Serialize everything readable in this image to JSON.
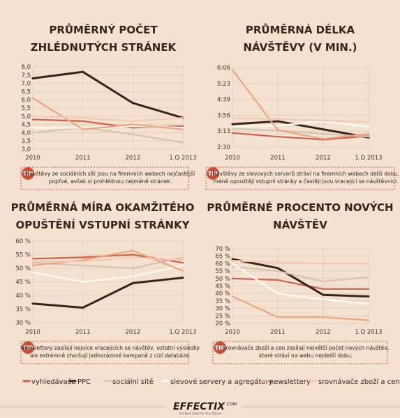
{
  "colors": {
    "background": "#f3e2cf",
    "tip_badge": "#c8503a",
    "tip_border": "#c8503a",
    "grid": "#d9c3ad"
  },
  "series_styles": [
    {
      "key": "vyhledavace",
      "color": "#c96450",
      "width": 2.2
    },
    {
      "key": "ppc",
      "color": "#3a2418",
      "width": 3
    },
    {
      "key": "socialni_site",
      "color": "#d5c4b0",
      "width": 2.2
    },
    {
      "key": "slevove_servery",
      "color": "#fdf8ef",
      "width": 2.5
    },
    {
      "key": "newslettery",
      "color": "#eba57f",
      "width": 2.2
    },
    {
      "key": "srovnavace",
      "color": "#f3c9b5",
      "width": 2.2
    }
  ],
  "legend": [
    {
      "label": "vyhledávače",
      "color": "#c96450"
    },
    {
      "label": "PPC",
      "color": "#3a2418"
    },
    {
      "label": "sociální sítě",
      "color": "#d5c4b0"
    },
    {
      "label": "slevové servery a agregátory",
      "color": "#fdf8ef"
    },
    {
      "label": "newslettery",
      "color": "#eba57f"
    },
    {
      "label": "srovnávače zboží a cen",
      "color": "#f3c9b5"
    }
  ],
  "brand": {
    "name": "EFFECTIX",
    "tld": ".COM",
    "tagline": "The Best Value for Your Dollars"
  },
  "chart_data": [
    {
      "type": "line",
      "title": [
        "PRŮMĚRNÝ POČET",
        "ZHLÉDNUTÝCH STRÁNEK"
      ],
      "categories": [
        "2010",
        "2011",
        "2012",
        "1.Q 2013"
      ],
      "y_ticks": [
        "8,0",
        "7,5",
        "7,0",
        "6,5",
        "6,0",
        "5,5",
        "5,0",
        "4,5",
        "4,0",
        "3,5",
        "3,0"
      ],
      "ylim": [
        3.0,
        8.0
      ],
      "series": [
        {
          "values": [
            4.8,
            4.7,
            4.3,
            4.4
          ]
        },
        {
          "values": [
            7.3,
            7.7,
            5.8,
            4.9
          ]
        },
        {
          "values": [
            4.0,
            4.3,
            3.9,
            3.4
          ]
        },
        {
          "values": [
            4.3,
            4.3,
            4.4,
            4.3
          ]
        },
        {
          "values": [
            6.1,
            4.2,
            4.5,
            4.2
          ]
        },
        {
          "values": [
            5.0,
            4.9,
            4.7,
            4.9
          ]
        }
      ],
      "tip_label": "TIP",
      "tip": [
        "Návštěvy ze sociálních sítí jsou na firemních webech nejčastější",
        "popřvé, avšak si prohlédnou nejméně stránek."
      ]
    },
    {
      "type": "line",
      "title": [
        "PRŮMĚRNÁ DÉLKA",
        "NÁVŠTĚVY (V MIN.)"
      ],
      "categories": [
        "2010",
        "2011",
        "2012",
        "1.Q 2013"
      ],
      "y_ticks": [
        "6:06",
        "5:23",
        "4:39",
        "3:56",
        "3:13",
        "2:30"
      ],
      "ylim": [
        150,
        366
      ],
      "series": [
        {
          "values": [
            188,
            178,
            170,
            180
          ]
        },
        {
          "values": [
            212,
            220,
            198,
            176
          ]
        },
        {
          "values": [
            200,
            195,
            186,
            178
          ]
        },
        {
          "values": [
            205,
            208,
            220,
            205
          ]
        },
        {
          "values": [
            360,
            196,
            172,
            186
          ]
        },
        {
          "values": [
            228,
            226,
            222,
            218
          ]
        }
      ],
      "tip_label": "TIP",
      "tip": [
        "Návštěvy ze slevových serverů stráví na firemních webech delší dobu,",
        "méně opouštějí vstupní stránky a častěji jsou vracející se návštěvníci."
      ]
    },
    {
      "type": "line",
      "title": [
        "PRŮMĚRNÁ MÍRA OKAMŽITÉHO",
        "OPUŠTĚNÍ VSTUPNÍ STRÁNKY"
      ],
      "categories": [
        "2010",
        "2011",
        "2012",
        "1.Q 2013"
      ],
      "y_ticks": [
        "60 %",
        "55 %",
        "50 %",
        "45 %",
        "40 %",
        "35 %",
        "30 %"
      ],
      "ylim": [
        30,
        60
      ],
      "series": [
        {
          "values": [
            53.5,
            54.0,
            55.0,
            52.0
          ]
        },
        {
          "values": [
            37.0,
            35.5,
            44.5,
            46.5
          ]
        },
        {
          "values": [
            52.0,
            51.0,
            50.0,
            54.0
          ]
        },
        {
          "values": [
            48.5,
            45.0,
            47.0,
            51.0
          ]
        },
        {
          "values": [
            51.0,
            53.0,
            56.5,
            49.0
          ]
        },
        {
          "values": [
            52.5,
            52.5,
            54.0,
            53.0
          ]
        }
      ],
      "tip_label": "TIP",
      "tip": [
        "Newslettery zasílají nejvíce vracejících se návštěv, ostatní výsledky",
        "ale extrémně zhoršují jednorázové kampaně z cizí databáze."
      ]
    },
    {
      "type": "line",
      "title": [
        "PRŮMĚRNÉ PROCENTO NOVÝCH",
        "NÁVŠTĚV"
      ],
      "categories": [
        "2010",
        "2011",
        "2012",
        "1.Q 2013"
      ],
      "y_ticks": [
        "70 %",
        "65 %",
        "60 %",
        "55 %",
        "50 %",
        "45 %",
        "40 %",
        "35 %",
        "30 %",
        "25 %",
        "20 %"
      ],
      "ylim": [
        20,
        70
      ],
      "series": [
        {
          "values": [
            50,
            49,
            43,
            43
          ]
        },
        {
          "values": [
            63,
            57,
            39,
            38
          ]
        },
        {
          "values": [
            58,
            55,
            48,
            51
          ]
        },
        {
          "values": [
            60,
            40,
            36,
            33
          ]
        },
        {
          "values": [
            38,
            24,
            24,
            22
          ]
        },
        {
          "values": [
            62,
            61,
            60,
            60
          ]
        }
      ],
      "tip_label": "TIP",
      "tip": [
        "Srovnávače zboží a cen zasílají největší počet nových návštěv,",
        "které stráví na webu nejdelší dobu."
      ]
    }
  ]
}
